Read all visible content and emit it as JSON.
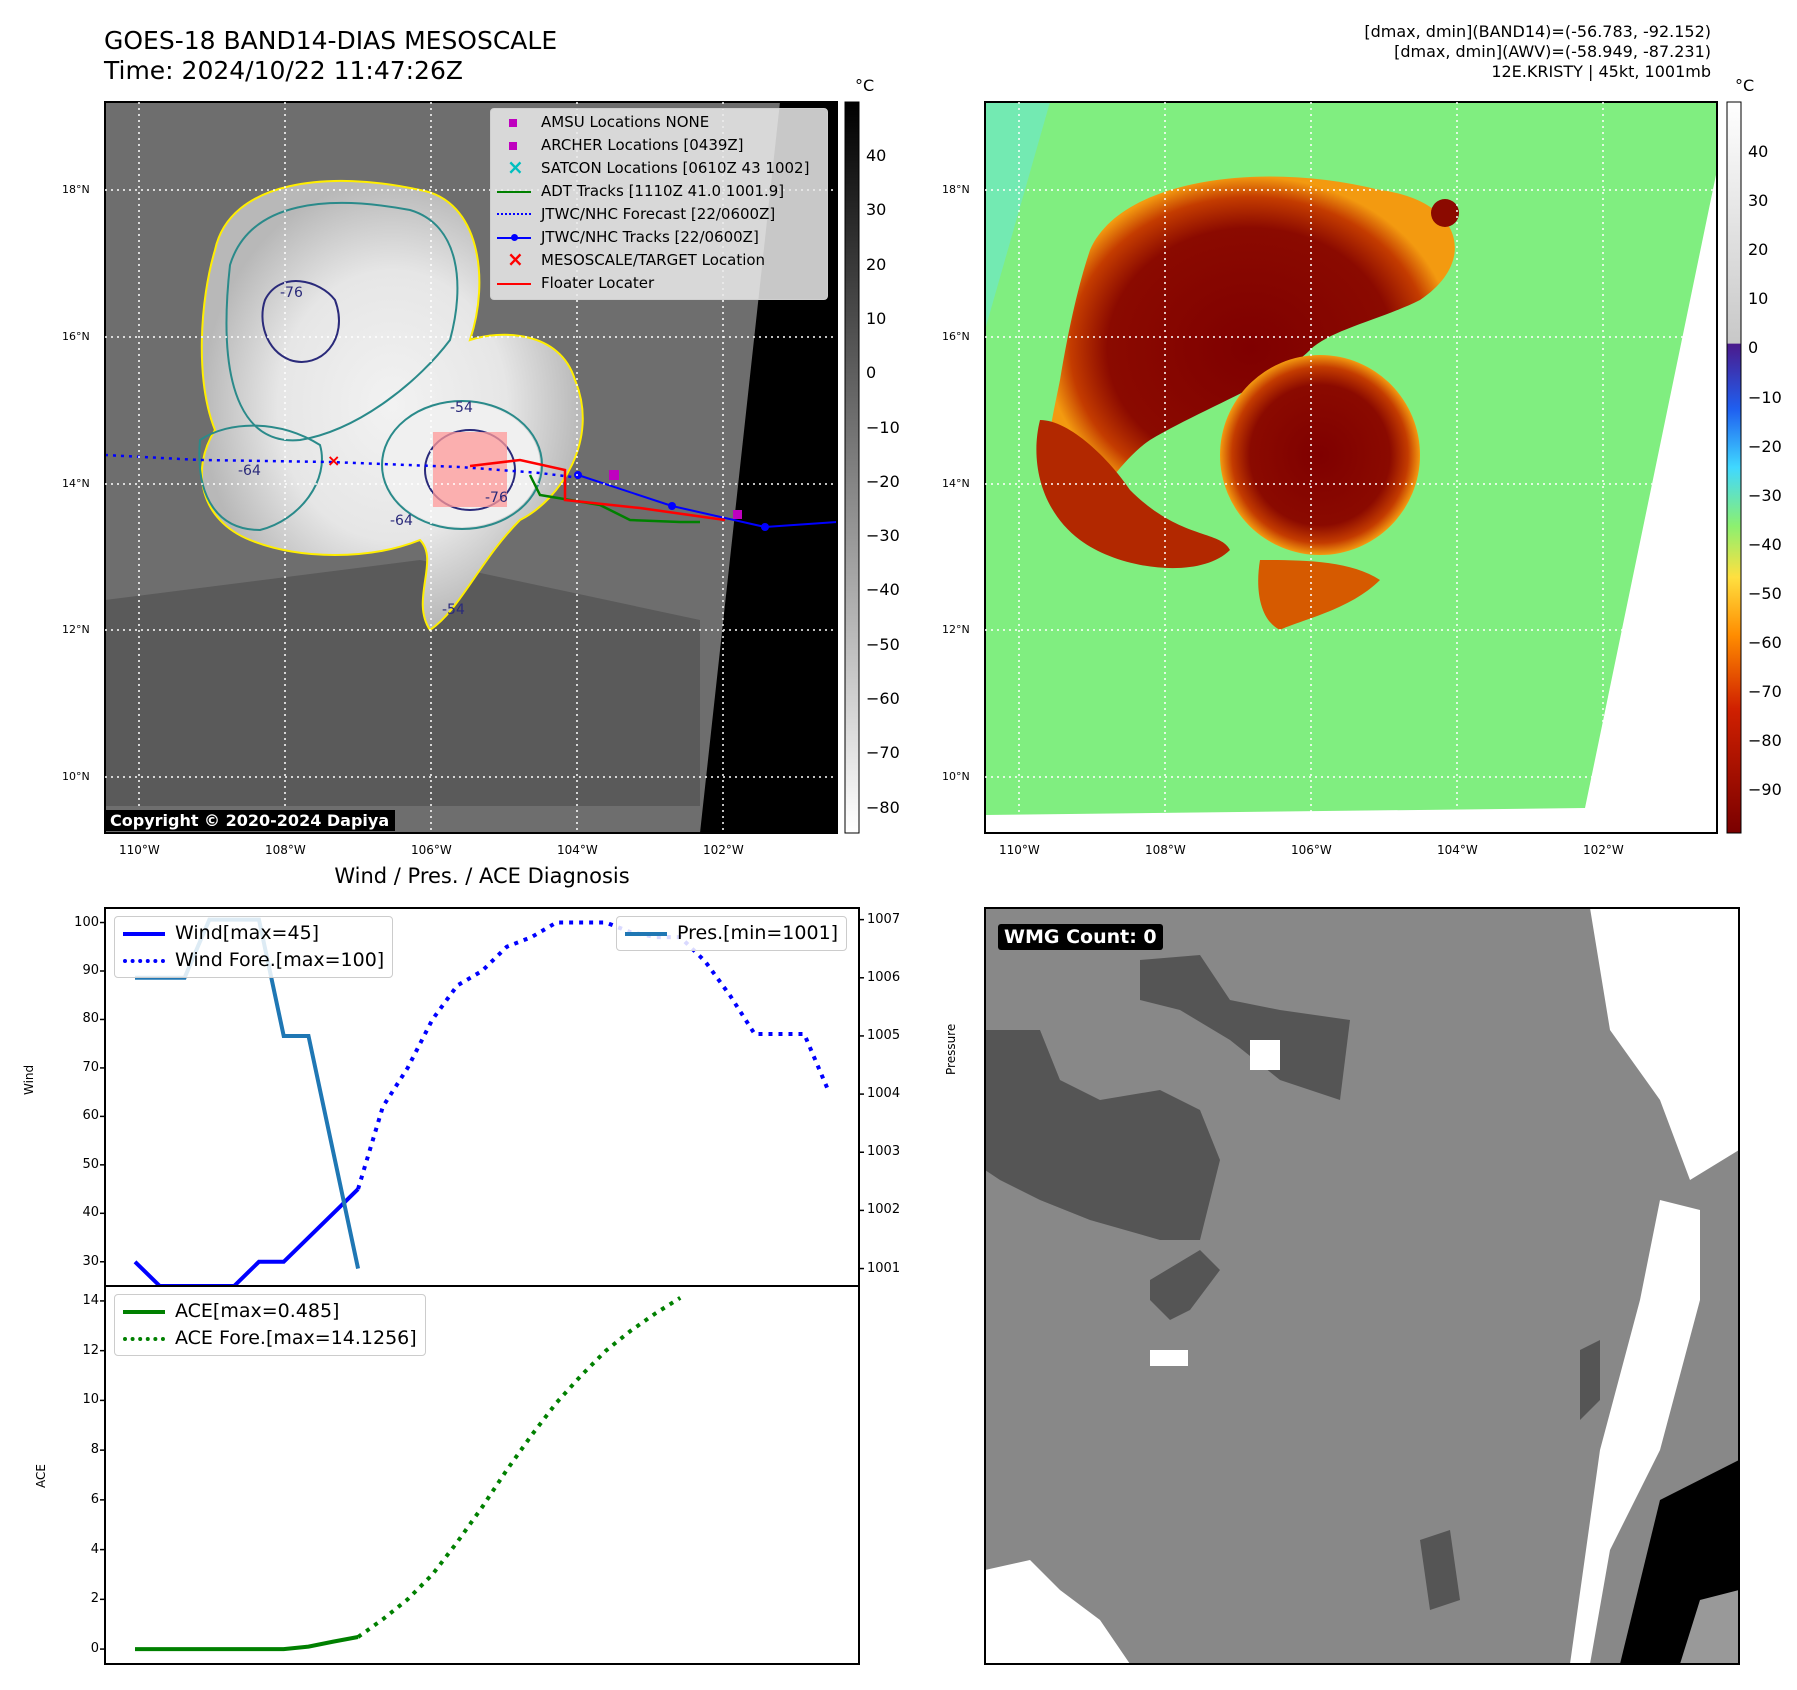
{
  "header": {
    "title_line1": "GOES-18 BAND14-DIAS MESOSCALE",
    "title_line2": "Time: 2024/10/22 11:47:26Z",
    "info_line1": "[dmax, dmin](BAND14)=(-56.783, -92.152)",
    "info_line2": "[dmax, dmin](AWV)=(-58.949, -87.231)",
    "info_line3": "12E.KRISTY | 45kt, 1001mb"
  },
  "map_axes": {
    "lon_labels": [
      "110°W",
      "108°W",
      "106°W",
      "104°W",
      "102°W"
    ],
    "lat_labels": [
      "18°N",
      "16°N",
      "14°N",
      "12°N",
      "10°N"
    ]
  },
  "ir_panel": {
    "colorbar_unit": "°C",
    "colorbar_ticks": [
      "40",
      "30",
      "20",
      "10",
      "0",
      "−10",
      "−20",
      "−30",
      "−40",
      "−50",
      "−60",
      "−70",
      "−80"
    ],
    "copyright": "Copyright © 2020-2024 Dapiya",
    "contour_labels": [
      "-76",
      "-64",
      "-64",
      "-76",
      "-54",
      "-54"
    ],
    "legend": [
      {
        "label": "AMSU Locations NONE",
        "color": "#bf00bf",
        "marker": "square"
      },
      {
        "label": "ARCHER Locations [0439Z]",
        "color": "#bf00bf",
        "marker": "square"
      },
      {
        "label": "SATCON Locations [0610Z 43 1002]",
        "color": "#00bfbf",
        "marker": "x"
      },
      {
        "label": "ADT Tracks [1110Z 41.0 1001.9]",
        "color": "#008000",
        "marker": "line"
      },
      {
        "label": "JTWC/NHC Forecast [22/0600Z]",
        "color": "#0000ff",
        "marker": "dotted"
      },
      {
        "label": "JTWC/NHC Tracks [22/0600Z]",
        "color": "#0000ff",
        "marker": "line-dot"
      },
      {
        "label": "MESOSCALE/TARGET Location",
        "color": "#ff0000",
        "marker": "x"
      },
      {
        "label": "Floater Locater",
        "color": "#ff0000",
        "marker": "line"
      }
    ]
  },
  "awv_panel": {
    "colorbar_unit": "°C",
    "colorbar_ticks": [
      "40",
      "30",
      "20",
      "10",
      "0",
      "−10",
      "−20",
      "−30",
      "−40",
      "−50",
      "−60",
      "−70",
      "−80",
      "−90"
    ]
  },
  "wmg_panel": {
    "label": "WMG Count: 0"
  },
  "chart_data": [
    {
      "type": "line",
      "title": "Wind / Pres. / ACE Diagnosis",
      "ylabel": "Wind",
      "ylabel_right": "Pressure",
      "ylim": [
        25,
        103
      ],
      "ylim_right": [
        1000.7,
        1007.2
      ],
      "yticks": [
        30,
        40,
        50,
        60,
        70,
        80,
        90,
        100
      ],
      "yticks_right": [
        1001,
        1002,
        1003,
        1004,
        1005,
        1006,
        1007
      ],
      "series": [
        {
          "name": "Wind[max=45]",
          "color": "#0000ff",
          "style": "solid",
          "values": [
            30,
            25,
            25,
            25,
            25,
            30,
            30,
            35,
            40,
            45
          ]
        },
        {
          "name": "Wind Fore.[max=100]",
          "color": "#0000ff",
          "style": "dotted",
          "values": [
            45,
            62,
            70,
            80,
            87,
            90,
            95,
            97,
            100,
            100,
            100,
            98,
            97,
            97,
            92,
            85,
            77,
            77,
            77,
            65
          ]
        },
        {
          "name": "Pres.[min=1001]",
          "color": "#1f77b4",
          "style": "solid",
          "axis": "right",
          "values": [
            1006,
            1006,
            1006,
            1007,
            1007,
            1007,
            1005,
            1005,
            1003,
            1001
          ]
        }
      ]
    },
    {
      "type": "line",
      "ylabel": "ACE",
      "ylim": [
        -0.6,
        14.6
      ],
      "yticks": [
        0,
        2,
        4,
        6,
        8,
        10,
        12,
        14
      ],
      "series": [
        {
          "name": "ACE[max=0.485]",
          "color": "#008000",
          "style": "solid",
          "values": [
            0,
            0,
            0,
            0,
            0,
            0,
            0,
            0.1,
            0.3,
            0.485
          ]
        },
        {
          "name": "ACE Fore.[max=14.1256]",
          "color": "#008000",
          "style": "dotted",
          "values": [
            0.485,
            1.2,
            2.0,
            3.0,
            4.3,
            5.7,
            7.2,
            8.6,
            9.9,
            11.0,
            12.0,
            12.8,
            13.5,
            14.1256
          ]
        }
      ]
    }
  ]
}
